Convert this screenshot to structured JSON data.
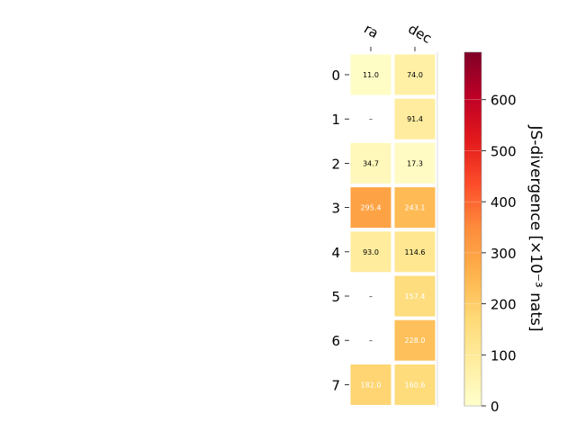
{
  "chart_data": {
    "type": "heatmap",
    "columns": [
      "ra",
      "dec"
    ],
    "rows": [
      "0",
      "1",
      "2",
      "3",
      "4",
      "5",
      "6",
      "7"
    ],
    "values": [
      [
        11.0,
        74.0
      ],
      [
        null,
        91.4
      ],
      [
        34.7,
        17.3
      ],
      [
        295.4,
        243.1
      ],
      [
        93.0,
        114.6
      ],
      [
        null,
        157.4
      ],
      [
        null,
        228.0
      ],
      [
        182.0,
        160.6
      ]
    ],
    "labels": [
      [
        "11.0",
        "74.0"
      ],
      [
        "–",
        "91.4"
      ],
      [
        "34.7",
        "17.3"
      ],
      [
        "295.4",
        "243.1"
      ],
      [
        "93.0",
        "114.6"
      ],
      [
        "–",
        "157.4"
      ],
      [
        "–",
        "228.0"
      ],
      [
        "182.0",
        "160.6"
      ]
    ],
    "colorbar": {
      "label": "JS-divergence [×10⁻³ nats]",
      "ticks": [
        "0",
        "100",
        "200",
        "300",
        "400",
        "500",
        "600"
      ],
      "range": [
        0,
        693
      ],
      "colormap": "YlOrRd"
    }
  }
}
